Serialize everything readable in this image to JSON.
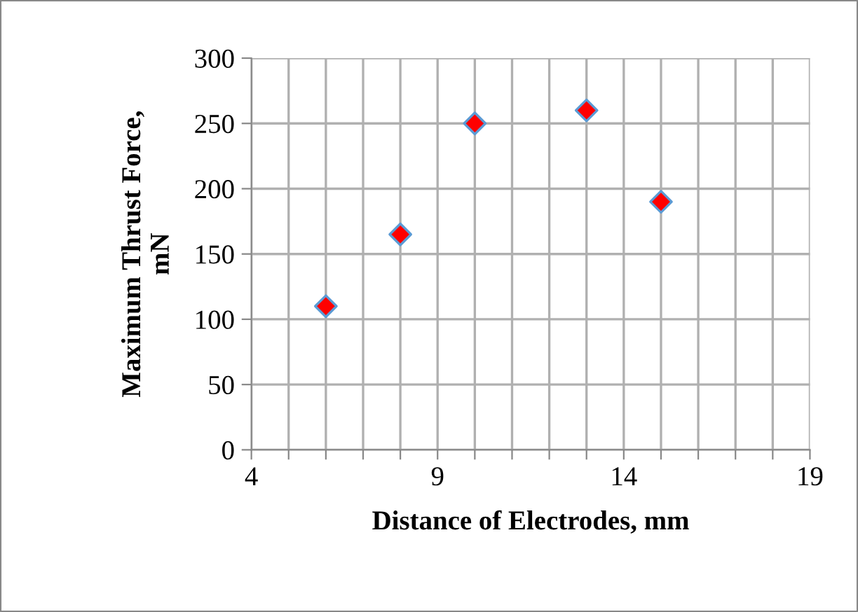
{
  "chart_data": {
    "type": "scatter",
    "xlabel": "Distance of Electrodes, mm",
    "ylabel": "Maximum Thrust Force,\nmN",
    "x": [
      6,
      8,
      10,
      13,
      15
    ],
    "series": [
      {
        "color": "#ff0000",
        "values": [
          110,
          165,
          250,
          260,
          190
        ]
      }
    ],
    "marker": "diamond",
    "grid": true,
    "xlim": [
      4,
      19
    ],
    "xticks": [
      4,
      {
        "value": 5,
        "label": null
      },
      {
        "value": 6,
        "label": null
      },
      {
        "value": 7,
        "label": null
      },
      {
        "value": 8,
        "label": null
      },
      9,
      {
        "value": 10,
        "label": null
      },
      {
        "value": 11,
        "label": null
      },
      {
        "value": 12,
        "label": null
      },
      {
        "value": 13,
        "label": null
      },
      14,
      {
        "value": 15,
        "label": null
      },
      {
        "value": 16,
        "label": null
      },
      {
        "value": 17,
        "label": null
      },
      {
        "value": 18,
        "label": null
      },
      19
    ],
    "ylim": [
      0,
      300
    ],
    "yticks": [
      0,
      50,
      100,
      150,
      200,
      250,
      300
    ]
  }
}
